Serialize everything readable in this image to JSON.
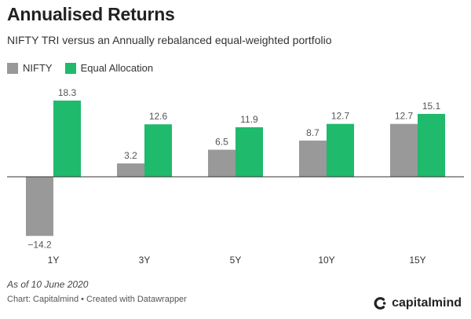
{
  "header": {
    "title": "Annualised Returns",
    "subtitle": "NIFTY TRI versus an Annually rebalanced equal-weighted portfolio"
  },
  "footer": {
    "note": "As of 10 June 2020",
    "source": "Chart: Capitalmind • Created with Datawrapper",
    "brand": "capitalmind"
  },
  "colors": {
    "nifty": "#999999",
    "equal": "#1fba6b"
  },
  "chart_data": {
    "type": "bar",
    "title": "Annualised Returns",
    "subtitle": "NIFTY TRI versus an Annually rebalanced equal-weighted portfolio",
    "categories": [
      "1Y",
      "3Y",
      "5Y",
      "10Y",
      "15Y"
    ],
    "series": [
      {
        "name": "NIFTY",
        "values": [
          -14.2,
          3.2,
          6.5,
          8.7,
          12.7
        ],
        "labels": [
          "−14.2",
          "3.2",
          "6.5",
          "8.7",
          "12.7"
        ],
        "color": "#999999"
      },
      {
        "name": "Equal Allocation",
        "values": [
          18.3,
          12.6,
          11.9,
          12.7,
          15.1
        ],
        "labels": [
          "18.3",
          "12.6",
          "11.9",
          "12.7",
          "15.1"
        ],
        "color": "#1fba6b"
      }
    ],
    "legend": "top-left",
    "grid": false,
    "data_labels": true
  }
}
